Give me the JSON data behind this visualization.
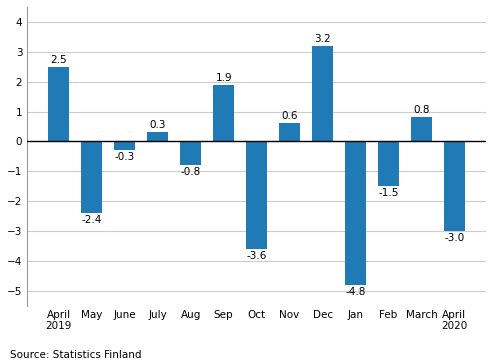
{
  "categories": [
    "April\n2019",
    "May",
    "June",
    "July",
    "Aug",
    "Sep",
    "Oct",
    "Nov",
    "Dec",
    "Jan",
    "Feb",
    "March",
    "April\n2020"
  ],
  "values": [
    2.5,
    -2.4,
    -0.3,
    0.3,
    -0.8,
    1.9,
    -3.6,
    0.6,
    3.2,
    -4.8,
    -1.5,
    0.8,
    -3.0
  ],
  "bar_color": "#1f7ab5",
  "ylim": [
    -5.5,
    4.5
  ],
  "yticks": [
    -5,
    -4,
    -3,
    -2,
    -1,
    0,
    1,
    2,
    3,
    4
  ],
  "source_text": "Source: Statistics Finland",
  "background_color": "#ffffff",
  "grid_color": "#cccccc",
  "label_fontsize": 7.5,
  "tick_fontsize": 7.5,
  "source_fontsize": 7.5,
  "bar_width": 0.65
}
